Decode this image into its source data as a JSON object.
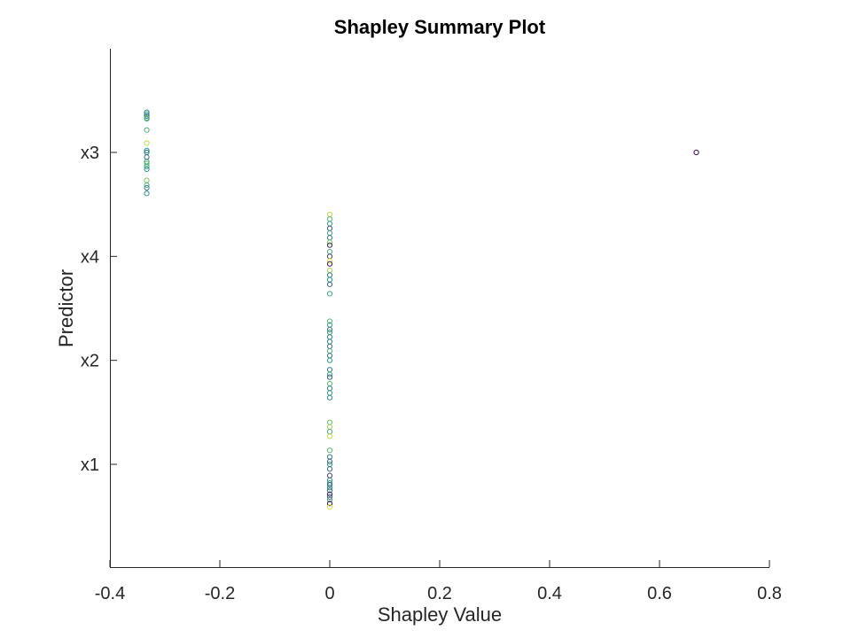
{
  "chart_data": {
    "type": "scatter",
    "title": "Shapley Summary Plot",
    "xlabel": "Shapley Value",
    "ylabel": "Predictor",
    "xlim": [
      -0.4,
      0.8
    ],
    "x_ticks": [
      "-0.4",
      "-0.2",
      "0",
      "0.2",
      "0.4",
      "0.6",
      "0.8"
    ],
    "x_tick_values": [
      -0.4,
      -0.2,
      0,
      0.2,
      0.4,
      0.6,
      0.8
    ],
    "y_categories": [
      "x3",
      "x4",
      "x2",
      "x1"
    ],
    "grid": false,
    "colormap": [
      "#440154",
      "#3b528b",
      "#21918c",
      "#5ec962",
      "#fde725"
    ],
    "series": [
      {
        "predictor": "x3",
        "points": [
          {
            "x": -0.333,
            "y": 0.43,
            "c": 0.45
          },
          {
            "x": -0.333,
            "y": 0.41,
            "c": 0.55
          },
          {
            "x": -0.333,
            "y": 0.39,
            "c": 0.35
          },
          {
            "x": -0.333,
            "y": 0.37,
            "c": 0.7
          },
          {
            "x": -0.333,
            "y": 0.36,
            "c": 0.6
          },
          {
            "x": -0.333,
            "y": 0.24,
            "c": 0.65
          },
          {
            "x": -0.333,
            "y": 0.1,
            "c": 0.9
          },
          {
            "x": -0.333,
            "y": 0.02,
            "c": 0.5
          },
          {
            "x": -0.333,
            "y": 0.0,
            "c": 0.4
          },
          {
            "x": -0.333,
            "y": -0.05,
            "c": 0.35
          },
          {
            "x": -0.333,
            "y": -0.1,
            "c": 0.55
          },
          {
            "x": -0.333,
            "y": -0.12,
            "c": 0.75
          },
          {
            "x": -0.333,
            "y": -0.15,
            "c": 0.6
          },
          {
            "x": -0.333,
            "y": -0.18,
            "c": 0.5
          },
          {
            "x": -0.333,
            "y": -0.3,
            "c": 0.8
          },
          {
            "x": -0.333,
            "y": -0.35,
            "c": 0.65
          },
          {
            "x": -0.333,
            "y": -0.38,
            "c": 0.45
          },
          {
            "x": -0.333,
            "y": -0.44,
            "c": 0.5
          },
          {
            "x": 0.667,
            "y": 0.0,
            "c": 0.02
          }
        ]
      },
      {
        "predictor": "x4",
        "points": [
          {
            "x": 0.0,
            "y": 0.45,
            "c": 0.9
          },
          {
            "x": 0.0,
            "y": 0.4,
            "c": 0.7
          },
          {
            "x": 0.0,
            "y": 0.35,
            "c": 0.55
          },
          {
            "x": 0.0,
            "y": 0.3,
            "c": 0.25
          },
          {
            "x": 0.0,
            "y": 0.25,
            "c": 0.6
          },
          {
            "x": 0.0,
            "y": 0.2,
            "c": 0.4
          },
          {
            "x": 0.0,
            "y": 0.15,
            "c": 0.8
          },
          {
            "x": 0.0,
            "y": 0.12,
            "c": 0.1
          },
          {
            "x": 0.0,
            "y": 0.05,
            "c": 0.65
          },
          {
            "x": 0.0,
            "y": 0.0,
            "c": 0.2
          },
          {
            "x": 0.0,
            "y": -0.05,
            "c": 0.95
          },
          {
            "x": 0.0,
            "y": -0.08,
            "c": 0.05
          },
          {
            "x": 0.0,
            "y": -0.15,
            "c": 0.85
          },
          {
            "x": 0.0,
            "y": -0.2,
            "c": 0.45
          },
          {
            "x": 0.0,
            "y": -0.25,
            "c": 0.5
          },
          {
            "x": 0.0,
            "y": -0.3,
            "c": 0.35
          },
          {
            "x": 0.0,
            "y": -0.4,
            "c": 0.6
          }
        ]
      },
      {
        "predictor": "x2",
        "points": [
          {
            "x": 0.0,
            "y": 0.42,
            "c": 0.7
          },
          {
            "x": 0.0,
            "y": 0.38,
            "c": 0.55
          },
          {
            "x": 0.0,
            "y": 0.33,
            "c": 0.4
          },
          {
            "x": 0.0,
            "y": 0.3,
            "c": 0.6
          },
          {
            "x": 0.0,
            "y": 0.25,
            "c": 0.45
          },
          {
            "x": 0.0,
            "y": 0.2,
            "c": 0.5
          },
          {
            "x": 0.0,
            "y": 0.15,
            "c": 0.35
          },
          {
            "x": 0.0,
            "y": 0.1,
            "c": 0.65
          },
          {
            "x": 0.0,
            "y": 0.05,
            "c": 0.4
          },
          {
            "x": 0.0,
            "y": 0.0,
            "c": 0.55
          },
          {
            "x": 0.0,
            "y": -0.1,
            "c": 0.45
          },
          {
            "x": 0.0,
            "y": -0.15,
            "c": 0.6
          },
          {
            "x": 0.0,
            "y": -0.18,
            "c": 0.3
          },
          {
            "x": 0.0,
            "y": -0.25,
            "c": 0.7
          },
          {
            "x": 0.0,
            "y": -0.3,
            "c": 0.45
          },
          {
            "x": 0.0,
            "y": -0.35,
            "c": 0.55
          },
          {
            "x": 0.0,
            "y": -0.4,
            "c": 0.5
          }
        ]
      },
      {
        "predictor": "x1",
        "points": [
          {
            "x": 0.0,
            "y": 0.45,
            "c": 0.75
          },
          {
            "x": 0.0,
            "y": 0.4,
            "c": 0.85
          },
          {
            "x": 0.0,
            "y": 0.35,
            "c": 0.65
          },
          {
            "x": 0.0,
            "y": 0.3,
            "c": 0.9
          },
          {
            "x": 0.0,
            "y": 0.15,
            "c": 0.7
          },
          {
            "x": 0.0,
            "y": 0.08,
            "c": 0.4
          },
          {
            "x": 0.0,
            "y": 0.03,
            "c": 0.3
          },
          {
            "x": 0.0,
            "y": 0.0,
            "c": 0.55
          },
          {
            "x": 0.0,
            "y": -0.05,
            "c": 0.35
          },
          {
            "x": 0.0,
            "y": -0.12,
            "c": 0.2
          },
          {
            "x": 0.0,
            "y": -0.17,
            "c": 0.45
          },
          {
            "x": 0.0,
            "y": -0.2,
            "c": 0.6
          },
          {
            "x": 0.0,
            "y": -0.22,
            "c": 0.3
          },
          {
            "x": 0.0,
            "y": -0.25,
            "c": 0.5
          },
          {
            "x": 0.0,
            "y": -0.28,
            "c": 0.4
          },
          {
            "x": 0.0,
            "y": -0.32,
            "c": 0.1
          },
          {
            "x": 0.0,
            "y": -0.35,
            "c": 0.25
          },
          {
            "x": 0.0,
            "y": -0.38,
            "c": 0.6
          },
          {
            "x": 0.0,
            "y": -0.42,
            "c": 0.05
          },
          {
            "x": 0.0,
            "y": -0.46,
            "c": 0.95
          }
        ]
      }
    ]
  }
}
